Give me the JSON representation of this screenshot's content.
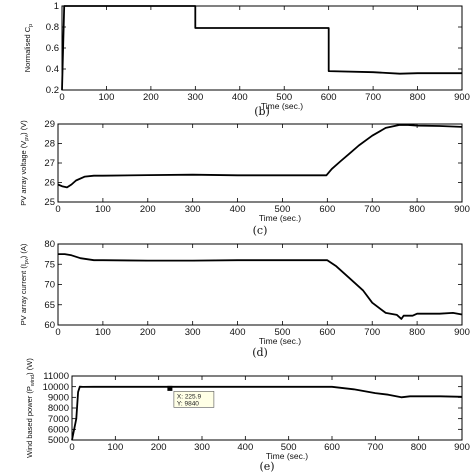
{
  "chart_data": [
    {
      "type": "line",
      "ylabel": "Normalised C",
      "ylabel_sub": "p",
      "xlabel": "Time (sec.)",
      "caption": "(b)",
      "xlim": [
        0,
        900
      ],
      "ylim": [
        0.2,
        1.0
      ],
      "xticks": [
        0,
        100,
        200,
        300,
        400,
        500,
        600,
        700,
        800,
        900
      ],
      "yticks": [
        0.2,
        0.4,
        0.6,
        0.8,
        1
      ],
      "ytick_labels": [
        "0.2",
        "0.4",
        "0.6",
        "0.8",
        "1"
      ],
      "grid": false,
      "series": [
        {
          "x": [
            0,
            5,
            10,
            300,
            300,
            600,
            600,
            700,
            760,
            800,
            900
          ],
          "y": [
            0.2,
            1.0,
            1.0,
            1.0,
            0.79,
            0.79,
            0.38,
            0.37,
            0.355,
            0.36,
            0.36
          ]
        }
      ]
    },
    {
      "type": "line",
      "ylabel": "PV array voltage (V",
      "ylabel_sub": "pv",
      "ylabel_end": ") (V)",
      "xlabel": "Time (sec.)",
      "caption": "(c)",
      "xlim": [
        0,
        900
      ],
      "ylim": [
        25,
        29
      ],
      "xticks": [
        0,
        100,
        200,
        300,
        400,
        500,
        600,
        700,
        800,
        900
      ],
      "yticks": [
        25,
        26,
        27,
        28,
        29
      ],
      "ytick_labels": [
        "25",
        "26",
        "27",
        "28",
        "29"
      ],
      "grid": false,
      "series": [
        {
          "x": [
            0,
            10,
            20,
            30,
            40,
            60,
            80,
            100,
            200,
            300,
            400,
            500,
            598,
            610,
            630,
            650,
            670,
            700,
            730,
            760,
            780,
            800,
            850,
            900
          ],
          "y": [
            25.9,
            25.8,
            25.75,
            25.9,
            26.1,
            26.3,
            26.35,
            26.35,
            26.38,
            26.4,
            26.37,
            26.37,
            26.37,
            26.7,
            27.1,
            27.5,
            27.9,
            28.4,
            28.8,
            28.95,
            28.95,
            28.92,
            28.9,
            28.85
          ]
        }
      ]
    },
    {
      "type": "line",
      "ylabel": "PV array current (I",
      "ylabel_sub": "pv",
      "ylabel_end": ") (A)",
      "xlabel": "Time (sec.)",
      "caption": "(d)",
      "xlim": [
        0,
        900
      ],
      "ylim": [
        60,
        80
      ],
      "xticks": [
        0,
        100,
        200,
        300,
        400,
        500,
        600,
        700,
        800,
        900
      ],
      "yticks": [
        60,
        65,
        70,
        75,
        80
      ],
      "ytick_labels": [
        "60",
        "65",
        "70",
        "75",
        "80"
      ],
      "grid": false,
      "series": [
        {
          "x": [
            0,
            15,
            30,
            50,
            80,
            100,
            200,
            300,
            400,
            500,
            600,
            620,
            650,
            680,
            700,
            730,
            755,
            765,
            770,
            790,
            800,
            850,
            880,
            900
          ],
          "y": [
            77.5,
            77.5,
            77.2,
            76.5,
            76.0,
            76.0,
            75.9,
            75.9,
            76.0,
            76.0,
            76.0,
            74.5,
            71.5,
            68.5,
            65.5,
            63.0,
            62.5,
            61.5,
            62.3,
            62.3,
            62.8,
            62.8,
            63.0,
            62.6
          ]
        }
      ]
    },
    {
      "type": "line",
      "ylabel": "Wind based power (P",
      "ylabel_sub": "wind",
      "ylabel_end": ") (W)",
      "xlabel": "Time (sec.)",
      "caption": "(e)",
      "xlim": [
        0,
        900
      ],
      "ylim": [
        5000,
        11000
      ],
      "xticks": [
        0,
        100,
        200,
        300,
        400,
        500,
        600,
        700,
        800,
        900
      ],
      "yticks": [
        5000,
        6000,
        7000,
        8000,
        9000,
        10000,
        11000
      ],
      "ytick_labels": [
        "5000",
        "6000",
        "7000",
        "8000",
        "9000",
        "10000",
        "11000"
      ],
      "grid": false,
      "series": [
        {
          "x": [
            0,
            10,
            14,
            18,
            25,
            50,
            100,
            200,
            300,
            400,
            500,
            600,
            650,
            700,
            730,
            760,
            780,
            800,
            850,
            900
          ],
          "y": [
            5000,
            7000,
            9500,
            10000,
            9980,
            9990,
            9990,
            9990,
            9990,
            9990,
            9990,
            9990,
            9750,
            9400,
            9250,
            9000,
            9100,
            9100,
            9100,
            9050
          ]
        }
      ],
      "datatip": {
        "x": 225.9,
        "y": 9840,
        "label_x": "X: 225.9",
        "label_y": "Y: 9840"
      }
    }
  ]
}
